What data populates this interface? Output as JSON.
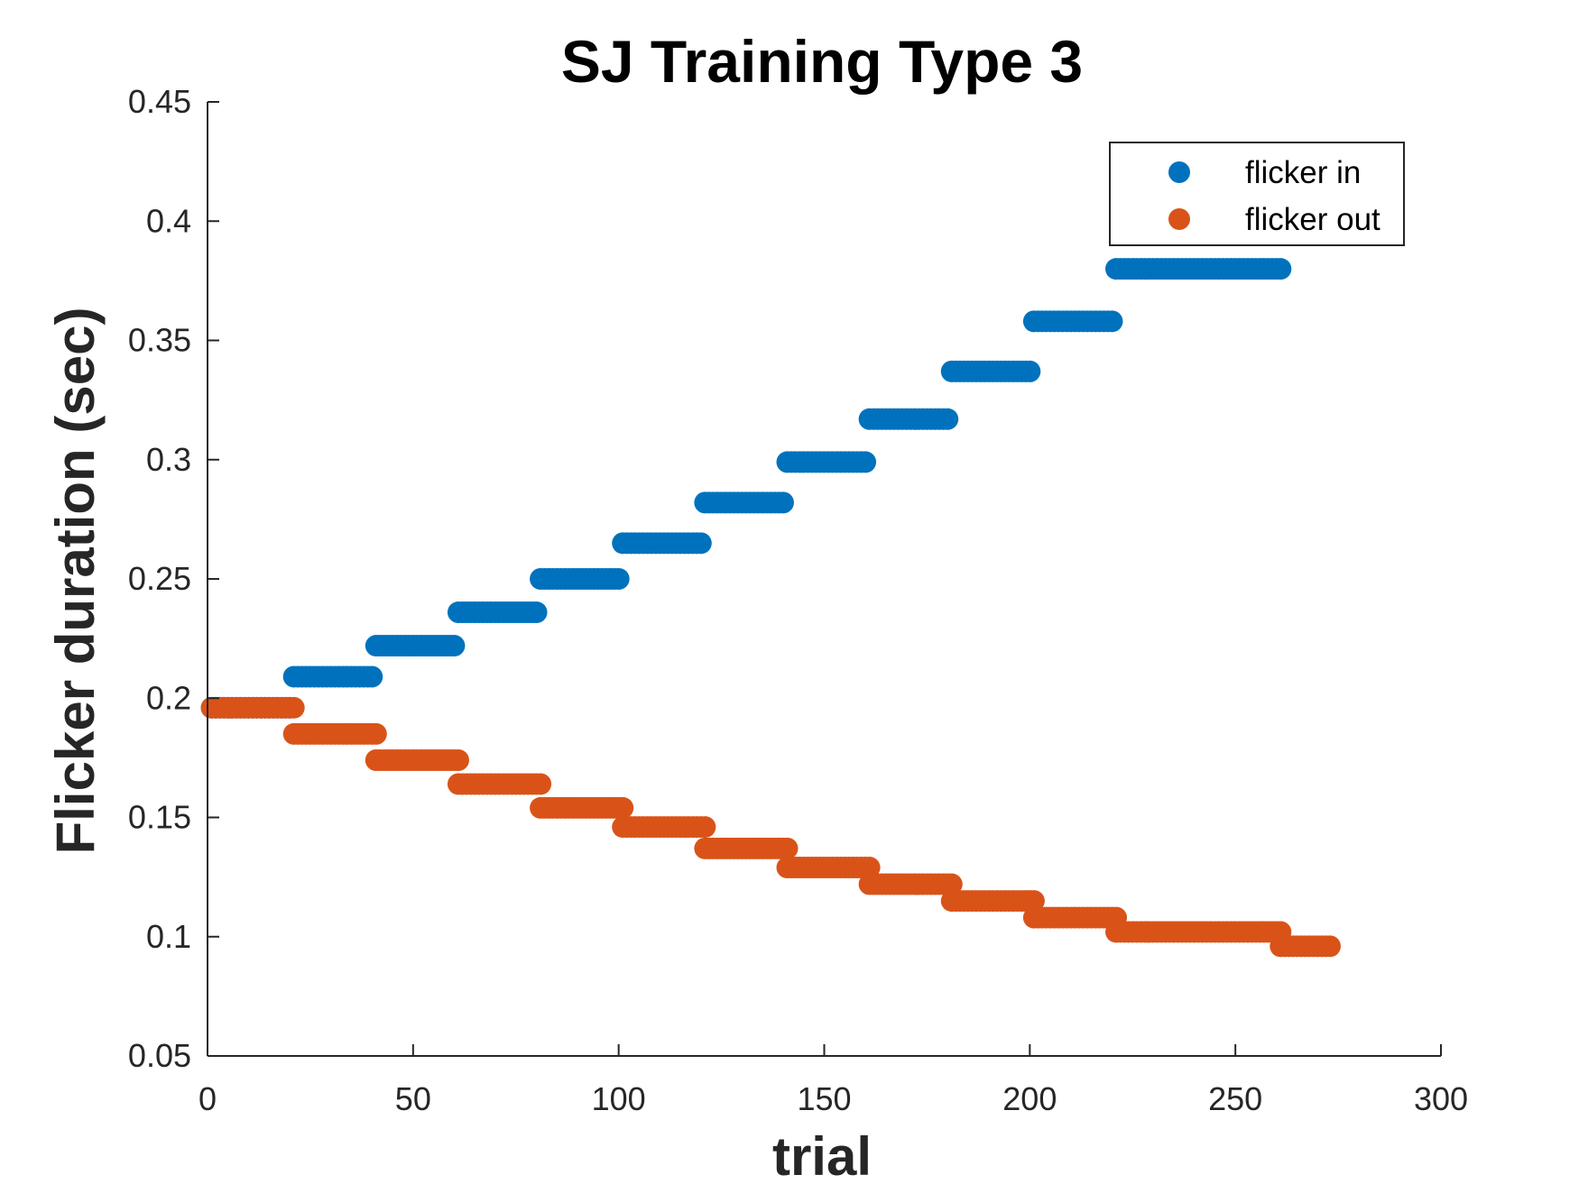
{
  "chart_data": {
    "type": "scatter",
    "title": "SJ Training Type 3",
    "xlabel": "trial",
    "ylabel": "Flicker duration (sec)",
    "xlim": [
      0,
      300
    ],
    "ylim": [
      0.05,
      0.45
    ],
    "xticks": [
      0,
      50,
      100,
      150,
      200,
      250,
      300
    ],
    "yticks": [
      0.05,
      0.1,
      0.15,
      0.2,
      0.25,
      0.3,
      0.35,
      0.4,
      0.45
    ],
    "xtick_labels": [
      "0",
      "50",
      "100",
      "150",
      "200",
      "250",
      "300"
    ],
    "ytick_labels": [
      "0.05",
      "0.1",
      "0.15",
      "0.2",
      "0.25",
      "0.3",
      "0.35",
      "0.4",
      "0.45"
    ],
    "grid": false,
    "legend_position": "top-right",
    "marker": "filled-circle",
    "series": [
      {
        "name": "flicker in",
        "color": "#0072BD",
        "steps": [
          {
            "x_start": 1,
            "x_end": 20,
            "y": 0.196
          },
          {
            "x_start": 21,
            "x_end": 40,
            "y": 0.209
          },
          {
            "x_start": 41,
            "x_end": 60,
            "y": 0.222
          },
          {
            "x_start": 61,
            "x_end": 80,
            "y": 0.236
          },
          {
            "x_start": 81,
            "x_end": 100,
            "y": 0.25
          },
          {
            "x_start": 101,
            "x_end": 120,
            "y": 0.265
          },
          {
            "x_start": 121,
            "x_end": 140,
            "y": 0.282
          },
          {
            "x_start": 141,
            "x_end": 160,
            "y": 0.299
          },
          {
            "x_start": 161,
            "x_end": 180,
            "y": 0.317
          },
          {
            "x_start": 181,
            "x_end": 200,
            "y": 0.337
          },
          {
            "x_start": 201,
            "x_end": 220,
            "y": 0.358
          },
          {
            "x_start": 221,
            "x_end": 261,
            "y": 0.38
          }
        ]
      },
      {
        "name": "flicker out",
        "color": "#D95319",
        "steps": [
          {
            "x_start": 1,
            "x_end": 21,
            "y": 0.196
          },
          {
            "x_start": 21,
            "x_end": 41,
            "y": 0.185
          },
          {
            "x_start": 41,
            "x_end": 61,
            "y": 0.174
          },
          {
            "x_start": 61,
            "x_end": 81,
            "y": 0.164
          },
          {
            "x_start": 81,
            "x_end": 101,
            "y": 0.154
          },
          {
            "x_start": 101,
            "x_end": 121,
            "y": 0.146
          },
          {
            "x_start": 121,
            "x_end": 141,
            "y": 0.137
          },
          {
            "x_start": 141,
            "x_end": 161,
            "y": 0.129
          },
          {
            "x_start": 161,
            "x_end": 181,
            "y": 0.122
          },
          {
            "x_start": 181,
            "x_end": 201,
            "y": 0.115
          },
          {
            "x_start": 201,
            "x_end": 221,
            "y": 0.108
          },
          {
            "x_start": 221,
            "x_end": 261,
            "y": 0.102
          },
          {
            "x_start": 261,
            "x_end": 273,
            "y": 0.096
          }
        ]
      }
    ]
  }
}
